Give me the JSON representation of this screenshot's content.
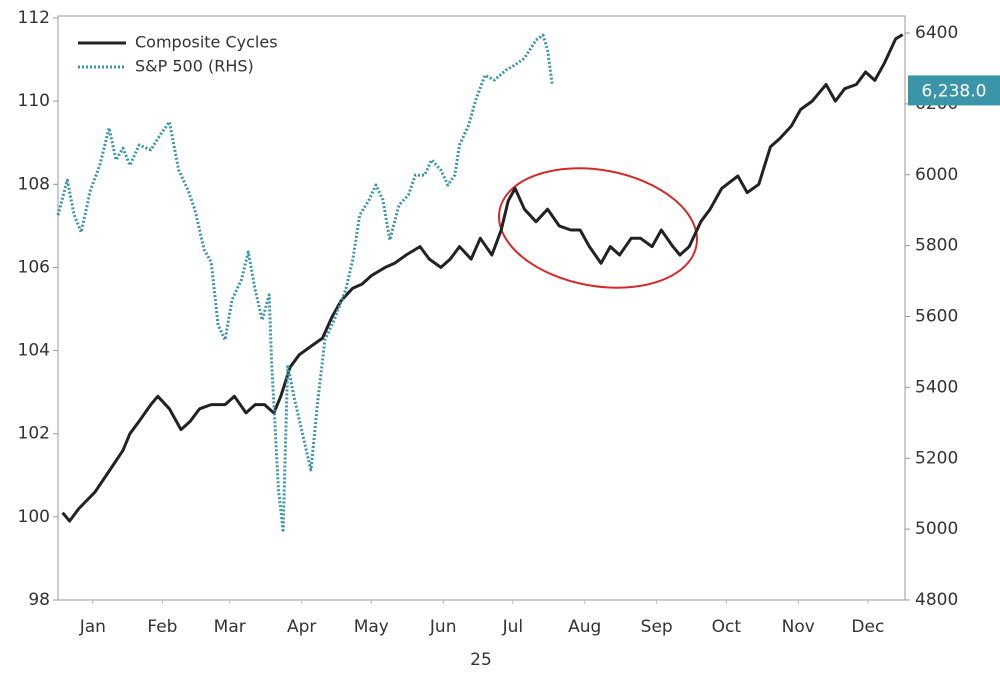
{
  "chart_data": {
    "type": "line",
    "x_label": "25",
    "xlim": [
      0,
      365
    ],
    "xticks": [
      {
        "value": 15,
        "label": "Jan"
      },
      {
        "value": 45,
        "label": "Feb"
      },
      {
        "value": 74,
        "label": "Mar"
      },
      {
        "value": 105,
        "label": "Apr"
      },
      {
        "value": 135,
        "label": "May"
      },
      {
        "value": 166,
        "label": "Jun"
      },
      {
        "value": 196,
        "label": "Jul"
      },
      {
        "value": 227,
        "label": "Aug"
      },
      {
        "value": 258,
        "label": "Sep"
      },
      {
        "value": 288,
        "label": "Oct"
      },
      {
        "value": 319,
        "label": "Nov"
      },
      {
        "value": 349,
        "label": "Dec"
      }
    ],
    "ylim": [
      98,
      112
    ],
    "yticks": [
      98,
      100,
      102,
      104,
      106,
      108,
      110,
      112
    ],
    "y2lim": [
      4800,
      6400
    ],
    "y2ticks": [
      4800,
      5000,
      5200,
      5400,
      5600,
      5800,
      6000,
      6200,
      6400
    ],
    "legend": "upper left",
    "grid": false,
    "series": [
      {
        "name": "Composite Cycles",
        "color": "#222222",
        "dash": "solid",
        "axis": "y",
        "x": [
          2,
          5,
          9,
          16,
          22,
          28,
          31,
          35,
          40,
          43,
          48,
          53,
          57,
          61,
          66,
          72,
          76,
          81,
          85,
          89,
          93,
          96,
          100,
          104,
          109,
          114,
          118,
          122,
          127,
          131,
          135,
          141,
          145,
          150,
          156,
          160,
          165,
          169,
          173,
          178,
          182,
          187,
          191,
          194,
          197,
          201,
          206,
          211,
          216,
          221,
          225,
          229,
          234,
          238,
          242,
          247,
          251,
          256,
          260,
          265,
          268,
          272,
          277,
          281,
          286,
          293,
          297,
          302,
          307,
          311,
          316,
          320,
          325,
          331,
          335,
          339,
          344,
          348,
          352,
          356,
          361,
          364
        ],
        "values": [
          100.1,
          99.9,
          100.2,
          100.6,
          101.1,
          101.6,
          102.0,
          102.3,
          102.7,
          102.9,
          102.6,
          102.1,
          102.3,
          102.6,
          102.7,
          102.7,
          102.9,
          102.5,
          102.7,
          102.7,
          102.5,
          102.9,
          103.6,
          103.9,
          104.1,
          104.3,
          104.8,
          105.2,
          105.5,
          105.6,
          105.8,
          106.0,
          106.1,
          106.3,
          106.5,
          106.2,
          106.0,
          106.2,
          106.5,
          106.2,
          106.7,
          106.3,
          106.9,
          107.6,
          107.9,
          107.4,
          107.1,
          107.4,
          107.0,
          106.9,
          106.9,
          106.5,
          106.1,
          106.5,
          106.3,
          106.7,
          106.7,
          106.5,
          106.9,
          106.5,
          106.3,
          106.5,
          107.1,
          107.4,
          107.9,
          108.2,
          107.8,
          108.0,
          108.9,
          109.1,
          109.4,
          109.8,
          110.0,
          110.4,
          110.0,
          110.3,
          110.4,
          110.7,
          110.5,
          110.9,
          111.5,
          111.6
        ]
      },
      {
        "name": "S&P 500 (RHS)",
        "color": "#3a95a8",
        "dash": "dotted",
        "axis": "y2",
        "x": [
          0,
          4,
          7,
          10,
          14,
          18,
          22,
          25,
          28,
          31,
          35,
          40,
          44,
          48,
          52,
          56,
          59,
          63,
          66,
          69,
          72,
          75,
          79,
          82,
          85,
          88,
          91,
          92,
          95,
          97,
          99,
          102,
          106,
          109,
          112,
          115,
          119,
          124,
          127,
          130,
          134,
          137,
          140,
          143,
          147,
          151,
          154,
          158,
          161,
          165,
          168,
          171,
          173,
          177,
          180,
          184,
          188,
          193,
          197,
          201,
          206,
          209,
          211,
          213
        ],
        "values": [
          5886,
          5985,
          5886,
          5838,
          5957,
          6027,
          6132,
          6042,
          6075,
          6027,
          6084,
          6070,
          6112,
          6149,
          6013,
          5957,
          5901,
          5788,
          5754,
          5576,
          5534,
          5647,
          5703,
          5782,
          5675,
          5590,
          5661,
          5477,
          5110,
          4997,
          5463,
          5364,
          5251,
          5167,
          5364,
          5534,
          5590,
          5675,
          5759,
          5886,
          5929,
          5971,
          5929,
          5816,
          5915,
          5943,
          5999,
          5999,
          6042,
          6013,
          5971,
          5999,
          6084,
          6140,
          6211,
          6281,
          6267,
          6295,
          6310,
          6329,
          6380,
          6394,
          6352,
          6253
        ]
      }
    ],
    "annotations": [
      {
        "value": 6238,
        "label": "6,238.0",
        "axis": "y2"
      }
    ]
  }
}
